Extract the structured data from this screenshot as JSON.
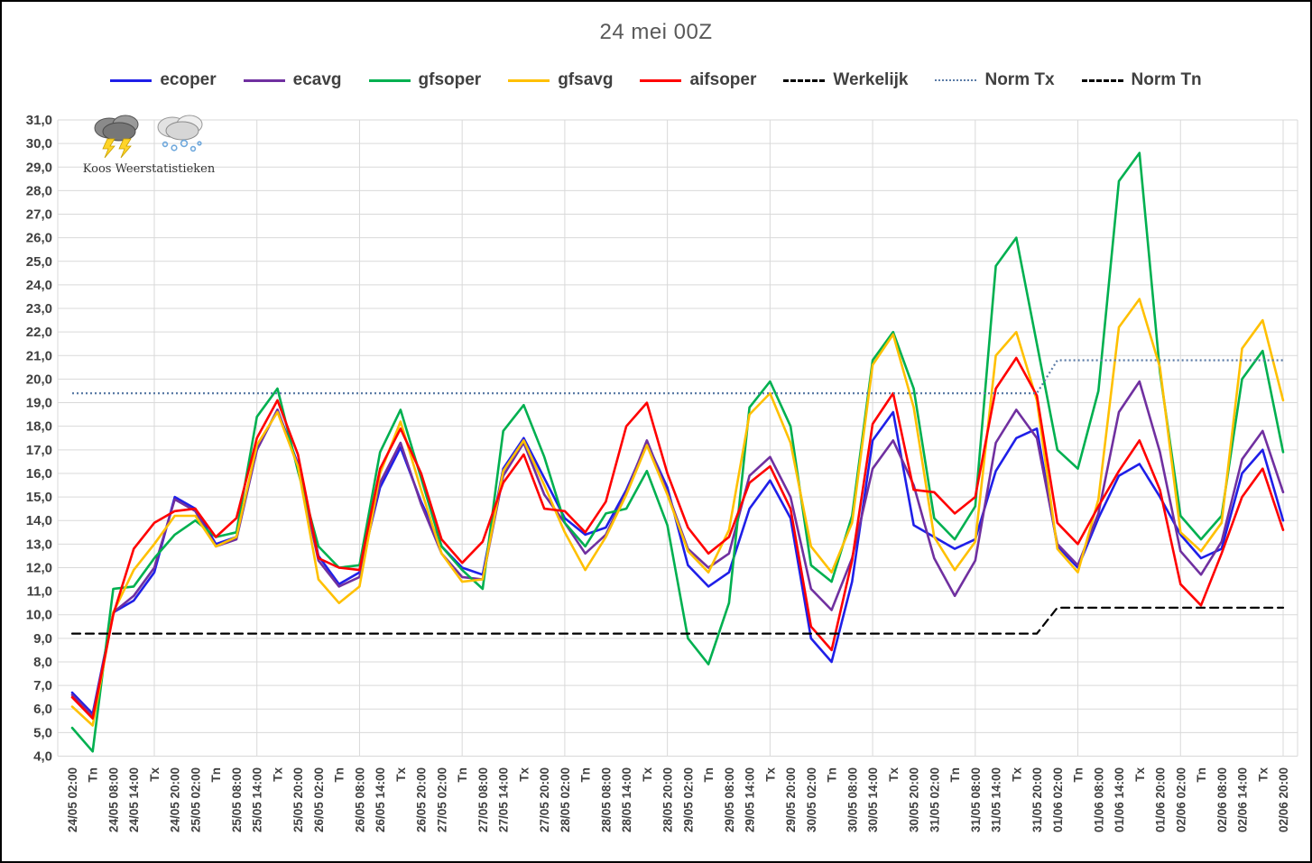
{
  "title": "24 mei 00Z",
  "logo": {
    "caption": "Koos Weerstatistieken"
  },
  "colors": {
    "grid": "#D9D9D9",
    "axis_text": "#404040",
    "title_text": "#595959",
    "background": "#FFFFFF"
  },
  "chart_data": {
    "type": "line",
    "title": "24 mei 00Z",
    "xlabel": "",
    "ylabel": "",
    "ylim": [
      4.0,
      31.0
    ],
    "y_tick_step": 1.0,
    "grid": true,
    "legend_position": "top",
    "y_tick_labels": [
      "31,0",
      "30,0",
      "29,0",
      "28,0",
      "27,0",
      "26,0",
      "25,0",
      "24,0",
      "23,0",
      "22,0",
      "21,0",
      "20,0",
      "19,0",
      "18,0",
      "17,0",
      "16,0",
      "15,0",
      "14,0",
      "13,0",
      "12,0",
      "11,0",
      "10,0",
      "9,0",
      "8,0",
      "7,0",
      "6,0",
      "5,0",
      "4,0"
    ],
    "x_labels": [
      "24/05 02:00",
      "Tn",
      "24/05 08:00",
      "24/05 14:00",
      "Tx",
      "24/05 20:00",
      "25/05 02:00",
      "Tn",
      "25/05 08:00",
      "25/05 14:00",
      "Tx",
      "25/05 20:00",
      "26/05 02:00",
      "Tn",
      "26/05 08:00",
      "26/05 14:00",
      "Tx",
      "26/05 20:00",
      "27/05 02:00",
      "Tn",
      "27/05 08:00",
      "27/05 14:00",
      "Tx",
      "27/05 20:00",
      "28/05 02:00",
      "Tn",
      "28/05 08:00",
      "28/05 14:00",
      "Tx",
      "28/05 20:00",
      "29/05 02:00",
      "Tn",
      "29/05 08:00",
      "29/05 14:00",
      "Tx",
      "29/05 20:00",
      "30/05 02:00",
      "Tn",
      "30/05 08:00",
      "30/05 14:00",
      "Tx",
      "30/05 20:00",
      "31/05 02:00",
      "Tn",
      "31/05 08:00",
      "31/05 14:00",
      "Tx",
      "31/05 20:00",
      "01/06 02:00",
      "Tn",
      "01/06 08:00",
      "01/06 14:00",
      "Tx",
      "01/06 20:00",
      "02/06 02:00",
      "Tn",
      "02/06 08:00",
      "02/06 14:00",
      "Tx",
      "02/06 20:00"
    ],
    "series": [
      {
        "name": "ecoper",
        "color": "#1F1FE8",
        "style": "solid",
        "values": [
          6.7,
          5.8,
          10.1,
          10.6,
          11.8,
          15.0,
          14.5,
          13.0,
          13.3,
          17.0,
          18.7,
          16.4,
          12.5,
          11.3,
          11.8,
          15.4,
          17.1,
          14.8,
          12.9,
          12.0,
          11.7,
          16.2,
          17.5,
          15.8,
          14.1,
          13.4,
          13.7,
          15.3,
          17.3,
          15.4,
          12.1,
          11.2,
          11.8,
          14.5,
          15.7,
          14.1,
          9.0,
          8.0,
          11.4,
          17.4,
          18.6,
          13.8,
          13.3,
          12.8,
          13.2,
          16.1,
          17.5,
          17.9,
          12.9,
          12.0,
          14.1,
          15.9,
          16.4,
          15.0,
          13.4,
          12.4,
          12.8,
          16.0,
          17.0,
          14.0
        ]
      },
      {
        "name": "ecavg",
        "color": "#7030A0",
        "style": "solid",
        "values": [
          6.6,
          5.7,
          10.1,
          10.8,
          12.0,
          14.9,
          14.4,
          12.9,
          13.2,
          17.0,
          18.7,
          16.3,
          12.3,
          11.2,
          11.6,
          15.6,
          17.3,
          14.7,
          12.6,
          11.6,
          11.5,
          15.9,
          17.3,
          15.1,
          13.9,
          12.6,
          13.4,
          15.2,
          17.4,
          15.2,
          12.8,
          12.0,
          12.6,
          15.9,
          16.7,
          15.0,
          11.1,
          10.2,
          12.4,
          16.2,
          17.4,
          15.5,
          12.4,
          10.8,
          12.3,
          17.3,
          18.7,
          17.5,
          13.0,
          12.1,
          14.3,
          18.6,
          19.9,
          16.9,
          12.7,
          11.7,
          13.1,
          16.6,
          17.8,
          15.2
        ]
      },
      {
        "name": "gfsoper",
        "color": "#00B050",
        "style": "solid",
        "values": [
          5.2,
          4.2,
          11.1,
          11.2,
          12.4,
          13.4,
          14.0,
          13.3,
          13.5,
          18.4,
          19.6,
          16.1,
          12.9,
          12.0,
          12.1,
          16.9,
          18.7,
          15.8,
          12.9,
          11.9,
          11.1,
          17.8,
          18.9,
          16.7,
          13.9,
          12.9,
          14.3,
          14.5,
          16.1,
          13.8,
          9.0,
          7.9,
          10.5,
          18.8,
          19.9,
          18.0,
          12.1,
          11.4,
          14.2,
          20.8,
          22.0,
          19.6,
          14.1,
          13.2,
          14.6,
          24.8,
          26.0,
          21.5,
          17.0,
          16.2,
          19.5,
          28.4,
          29.6,
          20.3,
          14.2,
          13.2,
          14.2,
          20.0,
          21.2,
          16.9
        ]
      },
      {
        "name": "gfsavg",
        "color": "#FFC000",
        "style": "solid",
        "values": [
          6.1,
          5.3,
          10.1,
          11.9,
          13.0,
          14.2,
          14.2,
          12.9,
          13.3,
          17.2,
          18.6,
          16.3,
          11.5,
          10.5,
          11.2,
          16.0,
          18.2,
          15.3,
          12.6,
          11.4,
          11.5,
          16.1,
          17.4,
          15.5,
          13.5,
          11.9,
          13.3,
          15.1,
          17.2,
          15.1,
          12.7,
          11.8,
          13.6,
          18.5,
          19.4,
          17.3,
          12.9,
          11.8,
          13.9,
          20.6,
          21.9,
          18.8,
          13.3,
          11.9,
          13.1,
          21.0,
          22.0,
          19.1,
          12.8,
          11.8,
          14.9,
          22.2,
          23.4,
          20.5,
          13.5,
          12.7,
          13.9,
          21.3,
          22.5,
          19.1
        ]
      },
      {
        "name": "aifsoper",
        "color": "#FF0000",
        "style": "solid",
        "values": [
          6.5,
          5.6,
          10.0,
          12.8,
          13.9,
          14.4,
          14.5,
          13.3,
          14.1,
          17.5,
          19.1,
          16.8,
          12.4,
          12.0,
          11.9,
          16.2,
          17.9,
          16.0,
          13.2,
          12.2,
          13.1,
          15.6,
          16.8,
          14.5,
          14.4,
          13.5,
          14.8,
          18.0,
          19.0,
          16.0,
          13.7,
          12.6,
          13.3,
          15.6,
          16.3,
          14.5,
          9.5,
          8.5,
          12.3,
          18.1,
          19.4,
          15.3,
          15.2,
          14.3,
          15.0,
          19.6,
          20.9,
          19.3,
          13.9,
          13.0,
          14.6,
          16.1,
          17.4,
          15.3,
          11.3,
          10.4,
          12.6,
          15.0,
          16.2,
          13.6
        ]
      },
      {
        "name": "Werkelijk",
        "color": "#000000",
        "style": "dashed",
        "values": []
      },
      {
        "name": "Norm Tx",
        "color": "#5B7BA6",
        "style": "dotted",
        "values": [
          19.4,
          19.4,
          19.4,
          19.4,
          19.4,
          19.4,
          19.4,
          19.4,
          19.4,
          19.4,
          19.4,
          19.4,
          19.4,
          19.4,
          19.4,
          19.4,
          19.4,
          19.4,
          19.4,
          19.4,
          19.4,
          19.4,
          19.4,
          19.4,
          19.4,
          19.4,
          19.4,
          19.4,
          19.4,
          19.4,
          19.4,
          19.4,
          19.4,
          19.4,
          19.4,
          19.4,
          19.4,
          19.4,
          19.4,
          19.4,
          19.4,
          19.4,
          19.4,
          19.4,
          19.4,
          19.4,
          19.4,
          19.4,
          20.8,
          20.8,
          20.8,
          20.8,
          20.8,
          20.8,
          20.8,
          20.8,
          20.8,
          20.8,
          20.8,
          20.8
        ]
      },
      {
        "name": "Norm Tn",
        "color": "#000000",
        "style": "dashed",
        "values": [
          9.2,
          9.2,
          9.2,
          9.2,
          9.2,
          9.2,
          9.2,
          9.2,
          9.2,
          9.2,
          9.2,
          9.2,
          9.2,
          9.2,
          9.2,
          9.2,
          9.2,
          9.2,
          9.2,
          9.2,
          9.2,
          9.2,
          9.2,
          9.2,
          9.2,
          9.2,
          9.2,
          9.2,
          9.2,
          9.2,
          9.2,
          9.2,
          9.2,
          9.2,
          9.2,
          9.2,
          9.2,
          9.2,
          9.2,
          9.2,
          9.2,
          9.2,
          9.2,
          9.2,
          9.2,
          9.2,
          9.2,
          9.2,
          10.3,
          10.3,
          10.3,
          10.3,
          10.3,
          10.3,
          10.3,
          10.3,
          10.3,
          10.3,
          10.3,
          10.3
        ]
      }
    ]
  }
}
